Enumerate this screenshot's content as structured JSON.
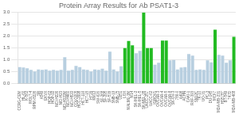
{
  "chart_data": {
    "type": "bar",
    "title": "Protein Array Results for Ab PSAT1-3",
    "categories": [
      "CCRG-CEM",
      "HL-60",
      "K-562",
      "MOLT-4",
      "RPMI-8226",
      "SR",
      "A549",
      "EKVX",
      "HOP-62",
      "HOP-92",
      "NCI-H226",
      "NCI-H23",
      "NCI-H322M",
      "NCI-H460",
      "NCI-H522",
      "COLO205",
      "HCC-2998",
      "HCT-116",
      "HCT-15",
      "HT29",
      "KM12",
      "SW-620",
      "SF-268",
      "SF-295",
      "SF-539",
      "SNB-19",
      "SNB-75",
      "U251",
      "LOX",
      "MALME-3M",
      "M14",
      "SK-MEL-2",
      "SK-MEL-5",
      "SK-MEL-28",
      "UACC-257",
      "UACC-62",
      "IGROV1",
      "OVCAR-3",
      "OVCAR-4",
      "OVCAR-5",
      "OVCAR-8",
      "SK-OV-3",
      "786-0",
      "A498",
      "ACHN",
      "CAKI-1",
      "RXF-393",
      "SN12C",
      "TK-10",
      "UO-31",
      "PC-3",
      "DU-145",
      "MCF7",
      "MDA-MB-231",
      "HS578T",
      "BT-549",
      "T47D",
      "MDA-MB-468"
    ],
    "values": [
      0.7,
      0.68,
      0.65,
      0.58,
      0.52,
      0.6,
      0.58,
      0.6,
      0.55,
      0.58,
      0.55,
      0.58,
      1.12,
      0.55,
      0.58,
      0.75,
      0.7,
      0.6,
      0.58,
      0.52,
      0.6,
      0.58,
      0.63,
      0.55,
      1.35,
      0.6,
      0.52,
      0.73,
      1.5,
      1.8,
      1.62,
      1.28,
      1.38,
      3.0,
      1.5,
      1.5,
      0.8,
      0.88,
      1.82,
      1.82,
      0.98,
      1.0,
      0.6,
      0.68,
      0.7,
      1.25,
      1.18,
      0.58,
      0.6,
      0.58,
      0.98,
      0.9,
      2.28,
      1.22,
      1.18,
      0.88,
      0.98,
      1.98
    ],
    "colors": [
      "#b8cfe0",
      "#b8cfe0",
      "#b8cfe0",
      "#b8cfe0",
      "#b8cfe0",
      "#b8cfe0",
      "#b8cfe0",
      "#b8cfe0",
      "#b8cfe0",
      "#b8cfe0",
      "#b8cfe0",
      "#b8cfe0",
      "#b8cfe0",
      "#b8cfe0",
      "#b8cfe0",
      "#b8cfe0",
      "#b8cfe0",
      "#b8cfe0",
      "#b8cfe0",
      "#b8cfe0",
      "#b8cfe0",
      "#b8cfe0",
      "#b8cfe0",
      "#b8cfe0",
      "#b8cfe0",
      "#b8cfe0",
      "#b8cfe0",
      "#b8cfe0",
      "#22bb22",
      "#22bb22",
      "#22bb22",
      "#b8cfe0",
      "#b8cfe0",
      "#22bb22",
      "#22bb22",
      "#22bb22",
      "#b8cfe0",
      "#b8cfe0",
      "#22bb22",
      "#22bb22",
      "#b8cfe0",
      "#b8cfe0",
      "#b8cfe0",
      "#b8cfe0",
      "#b8cfe0",
      "#b8cfe0",
      "#b8cfe0",
      "#b8cfe0",
      "#b8cfe0",
      "#b8cfe0",
      "#b8cfe0",
      "#b8cfe0",
      "#22bb22",
      "#b8cfe0",
      "#b8cfe0",
      "#b8cfe0",
      "#b8cfe0",
      "#22bb22"
    ],
    "ylim": [
      0.0,
      3.0
    ],
    "yticks": [
      {
        "value": 0,
        "label": "0.0"
      },
      0.5,
      {
        "value": 1,
        "label": "1.0"
      },
      1.5,
      {
        "value": 2,
        "label": "2.0"
      },
      2.5,
      {
        "value": 3,
        "label": "3.0"
      }
    ],
    "grid": true
  }
}
